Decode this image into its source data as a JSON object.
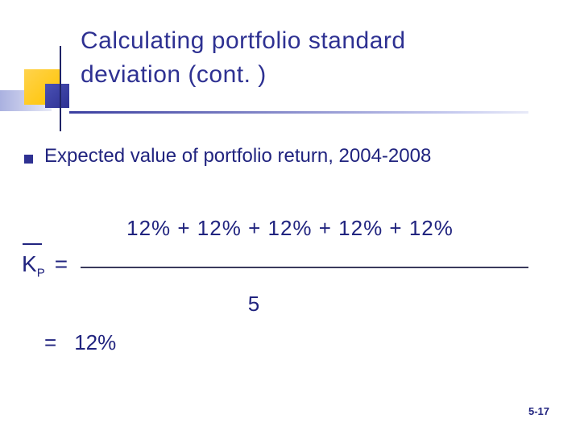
{
  "slide": {
    "title_line1": "Calculating portfolio standard",
    "title_line2": "deviation (cont. )",
    "bullet": "Expected value of portfolio return, 2004-2008",
    "formula": {
      "k_label": "K",
      "k_sub": "P",
      "equals": "=",
      "numerator": "12% + 12% + 12% + 12% + 12%",
      "denominator": "5",
      "result_equals": "=",
      "result": "12%"
    },
    "page_number": "5-17"
  },
  "colors": {
    "title": "#2e3192",
    "body": "#21247f",
    "accent_yellow": "#ffc400",
    "accent_blue": "#2e3192"
  }
}
